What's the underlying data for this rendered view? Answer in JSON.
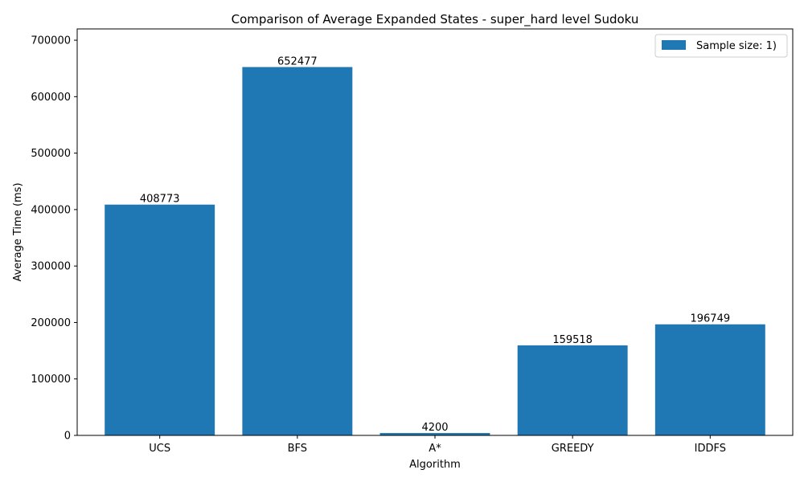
{
  "chart_data": {
    "type": "bar",
    "title": "Comparison of Average Expanded States - super_hard level Sudoku",
    "xlabel": "Algorithm",
    "ylabel": "Average Time (ms)",
    "categories": [
      "UCS",
      "BFS",
      "A*",
      "GREEDY",
      "IDDFS"
    ],
    "series": [
      {
        "name": "Sample size: 1)",
        "values": [
          408773,
          652477,
          4200,
          159518,
          196749
        ],
        "color": "#1f77b4"
      }
    ],
    "data_labels": [
      "408773",
      "652477",
      "4200",
      "159518",
      "196749"
    ],
    "ylim": [
      0,
      720000
    ],
    "yticks": [
      0,
      100000,
      200000,
      300000,
      400000,
      500000,
      600000,
      700000
    ],
    "ytick_labels": [
      "0",
      "100000",
      "200000",
      "300000",
      "400000",
      "500000",
      "600000",
      "700000"
    ],
    "grid": false,
    "legend_position": "top-right"
  }
}
